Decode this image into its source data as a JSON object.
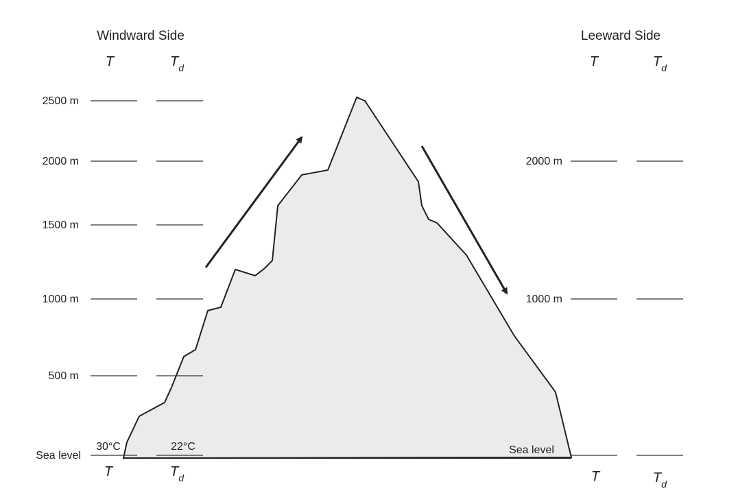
{
  "windward": {
    "title": "Windward Side",
    "columns": [
      {
        "symbol": "T"
      },
      {
        "symbol": "T",
        "subscript": "d"
      }
    ],
    "levels": [
      "2500 m",
      "2000 m",
      "1500 m",
      "1000 m",
      "500 m",
      "Sea level"
    ],
    "sea_level_values": [
      "30°C",
      "22°C"
    ]
  },
  "leeward": {
    "title": "Leeward Side",
    "columns": [
      {
        "symbol": "T"
      },
      {
        "symbol": "T",
        "subscript": "d"
      }
    ],
    "levels": [
      "2000 m",
      "1000 m"
    ],
    "sea_level_label": "Sea level"
  }
}
